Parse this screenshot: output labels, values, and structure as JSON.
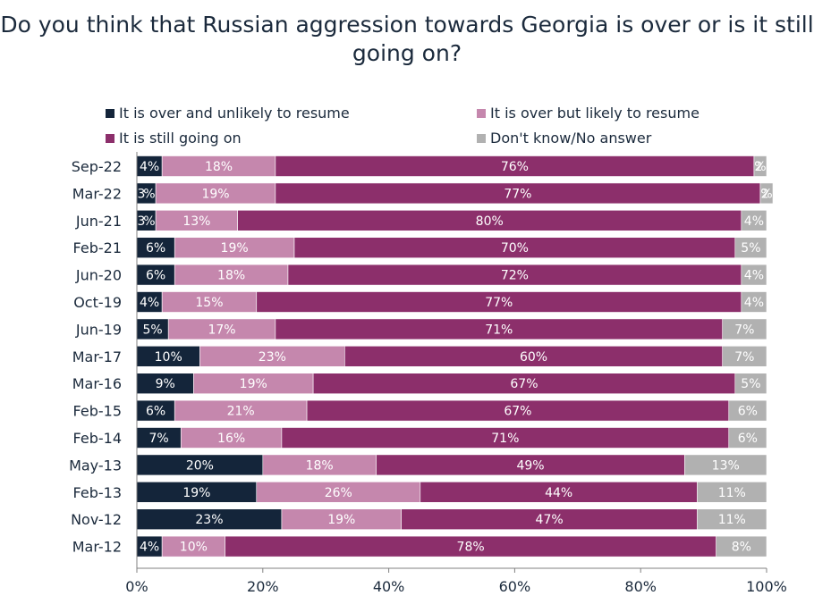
{
  "chart_data": {
    "type": "bar",
    "orientation": "horizontal",
    "stacked": true,
    "title": "Do you think that Russian aggression towards Georgia is over or is it still going on?",
    "xlim": [
      0,
      100
    ],
    "x_ticks": [
      "0%",
      "20%",
      "40%",
      "60%",
      "80%",
      "100%"
    ],
    "legend_placement": "top",
    "grid": false,
    "categories": [
      "Sep-22",
      "Mar-22",
      "Jun-21",
      "Feb-21",
      "Jun-20",
      "Oct-19",
      "Jun-19",
      "Mar-17",
      "Mar-16",
      "Feb-15",
      "Feb-14",
      "May-13",
      "Feb-13",
      "Nov-12",
      "Mar-12"
    ],
    "series": [
      {
        "name": "It is over and unlikely to resume",
        "color": "#14253a",
        "label_color": "#ffffff",
        "values": [
          4,
          3,
          3,
          6,
          6,
          4,
          5,
          10,
          9,
          6,
          7,
          20,
          19,
          23,
          4
        ]
      },
      {
        "name": "It is over but likely to resume",
        "color": "#c587ad",
        "label_color": "#ffffff",
        "values": [
          18,
          19,
          13,
          19,
          18,
          15,
          17,
          23,
          19,
          21,
          16,
          18,
          26,
          19,
          10
        ]
      },
      {
        "name": "It is still going on",
        "color": "#8c2f6b",
        "label_color": "#ffffff",
        "values": [
          76,
          77,
          80,
          70,
          72,
          77,
          71,
          60,
          67,
          67,
          71,
          49,
          44,
          47,
          78
        ]
      },
      {
        "name": "Don't know/No answer",
        "color": "#b1b1b1",
        "label_color": "#ffffff",
        "values": [
          2,
          2,
          4,
          5,
          4,
          4,
          7,
          7,
          5,
          6,
          6,
          13,
          11,
          11,
          8
        ]
      }
    ]
  }
}
